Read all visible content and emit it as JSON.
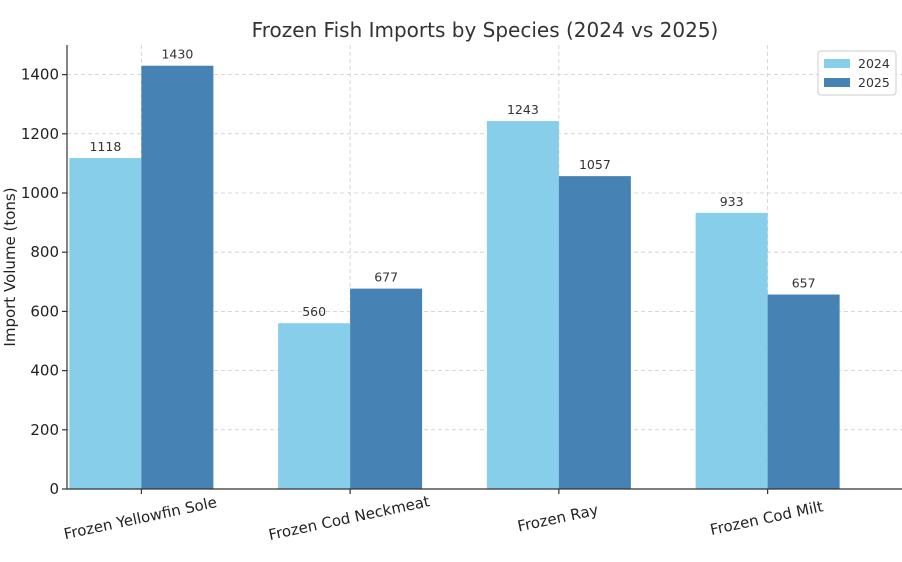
{
  "chart_data": {
    "type": "bar",
    "title": "Frozen Fish Imports by Species (2024 vs 2025)",
    "xlabel": "",
    "ylabel": "Import Volume (tons)",
    "ylim": [
      0,
      1500
    ],
    "yticks": [
      0,
      200,
      400,
      600,
      800,
      1000,
      1200,
      1400
    ],
    "categories": [
      "Frozen Yellowfin Sole",
      "Frozen Cod Neckmeat",
      "Frozen Ray",
      "Frozen Cod Milt"
    ],
    "series": [
      {
        "name": "2024",
        "color": "#87ceeb",
        "values": [
          1118,
          560,
          1243,
          933
        ]
      },
      {
        "name": "2025",
        "color": "#4682b4",
        "values": [
          1430,
          677,
          1057,
          657
        ]
      }
    ],
    "grid": true,
    "legend": "top-right"
  }
}
